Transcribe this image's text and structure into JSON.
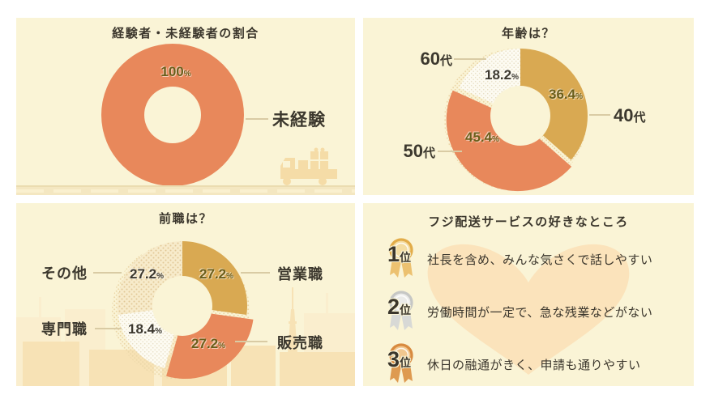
{
  "labels": {
    "percent_sign": "%"
  },
  "colors": {
    "panel_bg": "#FAF4D6",
    "orange_accent": "#E8885B",
    "gold_accent": "#D9A952",
    "olive_text": "#6B5E1A",
    "charcoal_text": "#3C382E",
    "leader_line": "#D9CBA4",
    "decor_silhouette": "#F5DCA7",
    "heart": "#FBE3BB"
  },
  "chart_data": [
    {
      "type": "donut",
      "title": "経験者・未経験者の割合",
      "total": 100,
      "legend_position": "right",
      "segments": [
        {
          "label": "未経験",
          "value": 100,
          "fill": "#E8885B"
        }
      ]
    },
    {
      "type": "donut",
      "title": "年齢は？",
      "total": 100,
      "legend_position": "around",
      "segments": [
        {
          "label": "40代",
          "label_num": "40",
          "label_suffix": "代",
          "value": 36.4,
          "fill": "#D9A952"
        },
        {
          "label": "50代",
          "label_num": "50",
          "label_suffix": "代",
          "value": 45.4,
          "fill": "#E8885B",
          "explode": 6,
          "boost": 5
        },
        {
          "label": "60代",
          "label_num": "60",
          "label_suffix": "代",
          "value": 18.2,
          "fill": "pattern:dots-white"
        }
      ]
    },
    {
      "type": "donut",
      "title": "前職は？",
      "total": 100,
      "legend_position": "around",
      "segments": [
        {
          "label": "営業職",
          "value": 27.2,
          "fill": "#D9A952"
        },
        {
          "label": "販売職",
          "value": 27.2,
          "fill": "#E8885B",
          "explode": 6,
          "boost": 5
        },
        {
          "label": "専門職",
          "value": 18.4,
          "fill": "pattern:dots-white"
        },
        {
          "label": "その他",
          "value": 27.2,
          "fill": "pattern:dots-cream"
        }
      ]
    }
  ],
  "favorites": {
    "title": "フジ配送サービスの好きなところ",
    "items": [
      {
        "rank": "1",
        "suffix": "位",
        "medal": "gold",
        "text": "社長を含め、みんな気さくで話しやすい",
        "medal_colors": {
          "ring": "#E2AC49",
          "face": "#F4DDA2",
          "ribbon": "#ECC170"
        }
      },
      {
        "rank": "2",
        "suffix": "位",
        "medal": "silver",
        "text": "労働時間が一定で、急な残業などがない",
        "medal_colors": {
          "ring": "#C6C7C5",
          "face": "#EBEBE9",
          "ribbon": "#D8D9D6"
        }
      },
      {
        "rank": "3",
        "suffix": "位",
        "medal": "bronze",
        "text": "休日の融通がきく、申請も通りやすい",
        "medal_colors": {
          "ring": "#D88A3F",
          "face": "#F1C78F",
          "ribbon": "#DE9A50"
        }
      }
    ]
  }
}
